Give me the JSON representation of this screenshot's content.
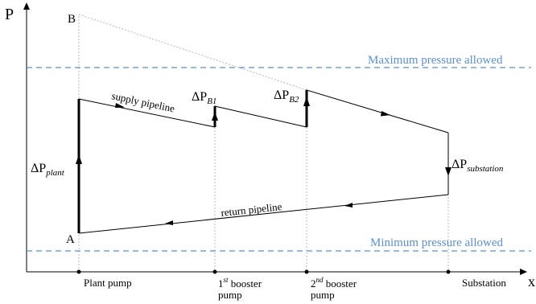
{
  "axes": {
    "y_label": "P",
    "x_label": "x"
  },
  "points": {
    "a": "A",
    "b": "B"
  },
  "pressure_limits": {
    "max_label": "Maximum pressure allowed",
    "min_label": "Minimum pressure allowed",
    "color": "#5b8fd6"
  },
  "pipelines": {
    "supply": "supply pipeline",
    "return": "return pipeline"
  },
  "deltas": {
    "plant": {
      "base": "ΔP",
      "sub": "plant"
    },
    "b1": {
      "base": "ΔP",
      "sub": "B1"
    },
    "b2": {
      "base": "ΔP",
      "sub": "B2"
    },
    "substation": {
      "base": "ΔP",
      "sub": "substation"
    }
  },
  "stations": {
    "plant": {
      "line1": "Plant pump"
    },
    "booster1": {
      "prefix": "1",
      "sup": "st",
      "suffix": " booster",
      "line2": "pump"
    },
    "booster2": {
      "prefix": "2",
      "sup": "nd",
      "suffix": " booster",
      "line2": "pump"
    },
    "substation": {
      "line1": "Substation"
    }
  }
}
